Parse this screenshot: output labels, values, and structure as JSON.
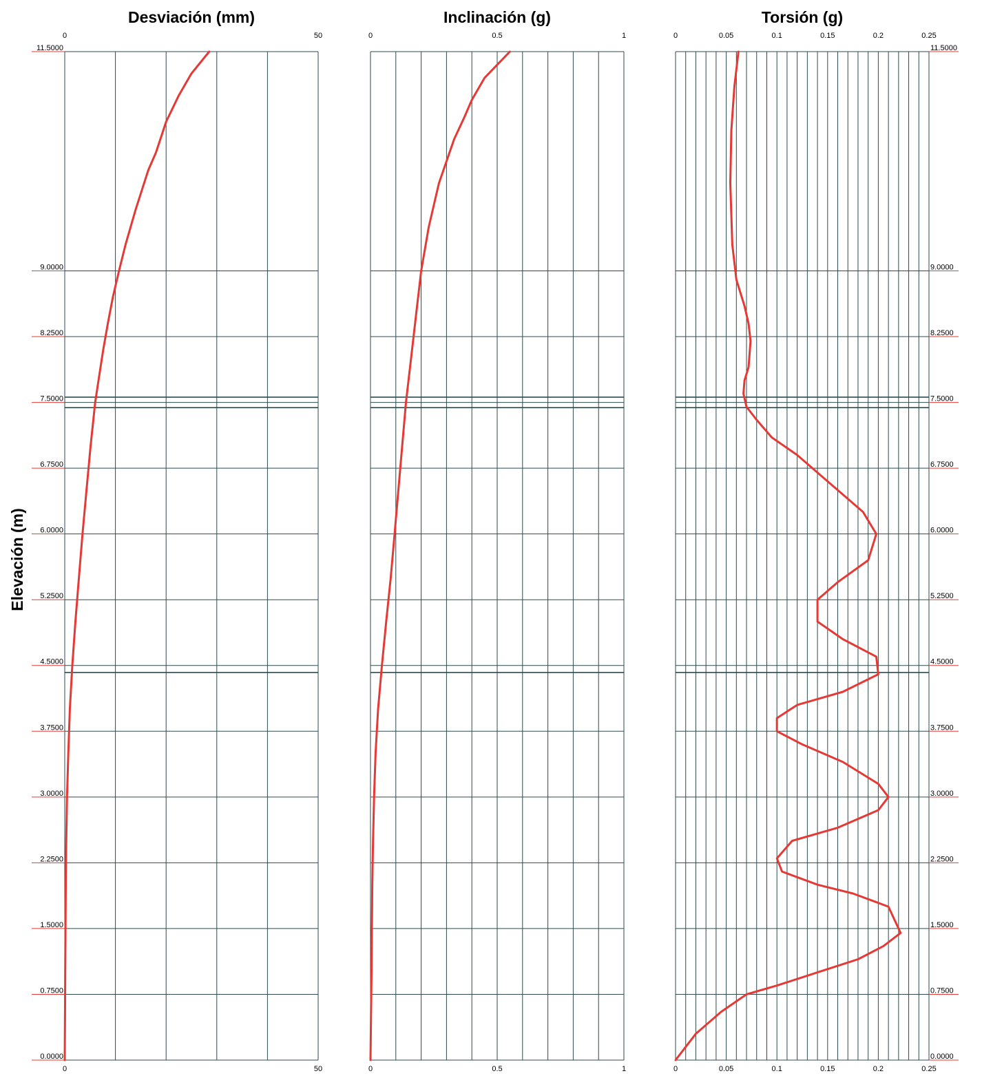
{
  "figure": {
    "ylabel": "Elevación (m)",
    "elevation_labels": [
      "0.0000",
      "0.7500",
      "1.5000",
      "2.2500",
      "3.0000",
      "3.7500",
      "4.5000",
      "5.2500",
      "6.0000",
      "6.7500",
      "7.5000",
      "8.2500",
      "9.0000",
      "11.5000"
    ],
    "elevation_values": [
      0,
      0.75,
      1.5,
      2.25,
      3.0,
      3.75,
      4.5,
      5.25,
      6.0,
      6.75,
      7.5,
      8.25,
      9.0,
      11.5
    ],
    "level_lines": [
      4.42,
      7.44,
      7.56
    ],
    "grid_color": "#2c4a4e",
    "line_color": "#e53935",
    "elev_underline_color": "#e53935"
  },
  "chart_data": [
    {
      "type": "line",
      "title": "Desviación (mm)",
      "xlabel": "",
      "ylabel": "Elevación (m)",
      "xlim": [
        0,
        50
      ],
      "ylim": [
        0,
        11.5
      ],
      "x_tick_labels": [
        "0",
        "50"
      ],
      "x_tick_values": [
        0,
        50
      ],
      "x_grid_values": [
        0,
        10,
        20,
        30,
        40,
        50
      ],
      "grid": true,
      "series": [
        {
          "x": [
            0,
            0.05,
            0.1,
            0.2,
            0.3,
            0.45,
            0.7,
            1.0,
            1.5,
            2.1,
            2.8,
            3.5,
            4.3,
            5.1,
            6.0,
            6.8,
            7.6,
            8.5,
            9.5,
            10.7,
            12.0,
            14.0,
            16.5,
            18.0,
            20.0,
            22.5,
            25.0,
            28.5
          ],
          "y": [
            0,
            0.5,
            1.0,
            2.0,
            2.5,
            3.0,
            3.5,
            4.0,
            4.5,
            5.0,
            5.5,
            6.0,
            6.5,
            7.0,
            7.5,
            7.8,
            8.1,
            8.4,
            8.7,
            9.0,
            9.3,
            9.7,
            10.15,
            10.35,
            10.7,
            11.0,
            11.25,
            11.5
          ]
        }
      ]
    },
    {
      "type": "line",
      "title": "Inclinación (g)",
      "xlabel": "",
      "ylabel": "",
      "xlim": [
        0,
        1
      ],
      "ylim": [
        0,
        11.5
      ],
      "x_tick_labels": [
        "0",
        "0.5",
        "1"
      ],
      "x_tick_values": [
        0,
        0.5,
        1
      ],
      "x_grid_values": [
        0,
        0.1,
        0.2,
        0.3,
        0.4,
        0.5,
        0.6,
        0.7,
        0.8,
        0.9,
        1.0
      ],
      "grid": true,
      "series": [
        {
          "x": [
            0,
            0.004,
            0.007,
            0.01,
            0.014,
            0.02,
            0.03,
            0.045,
            0.062,
            0.08,
            0.095,
            0.11,
            0.125,
            0.14,
            0.16,
            0.18,
            0.2,
            0.23,
            0.27,
            0.33,
            0.37,
            0.4,
            0.45,
            0.5,
            0.55
          ],
          "y": [
            0,
            1.0,
            2.0,
            2.5,
            3.0,
            3.5,
            4.0,
            4.5,
            5.0,
            5.5,
            6.0,
            6.5,
            7.0,
            7.5,
            8.0,
            8.5,
            9.0,
            9.5,
            10.0,
            10.5,
            10.75,
            10.95,
            11.2,
            11.35,
            11.5
          ]
        }
      ]
    },
    {
      "type": "line",
      "title": "Torsión (g)",
      "xlabel": "",
      "ylabel": "",
      "xlim": [
        0,
        0.25
      ],
      "ylim": [
        0,
        11.5
      ],
      "x_tick_labels": [
        "0",
        "0.05",
        "0.1",
        "0.15",
        "0.2",
        "0.25"
      ],
      "x_tick_values": [
        0,
        0.05,
        0.1,
        0.15,
        0.2,
        0.25
      ],
      "x_grid_values": [
        0,
        0.01,
        0.02,
        0.03,
        0.04,
        0.05,
        0.06,
        0.07,
        0.08,
        0.09,
        0.1,
        0.11,
        0.12,
        0.13,
        0.14,
        0.15,
        0.16,
        0.17,
        0.18,
        0.19,
        0.2,
        0.21,
        0.22,
        0.23,
        0.24,
        0.25
      ],
      "grid": true,
      "series": [
        {
          "x": [
            0,
            0.02,
            0.045,
            0.07,
            0.1,
            0.14,
            0.18,
            0.205,
            0.222,
            0.21,
            0.175,
            0.14,
            0.105,
            0.1,
            0.115,
            0.16,
            0.2,
            0.21,
            0.2,
            0.165,
            0.125,
            0.1,
            0.1,
            0.12,
            0.165,
            0.2,
            0.198,
            0.165,
            0.14,
            0.14,
            0.16,
            0.19,
            0.198,
            0.185,
            0.15,
            0.12,
            0.095,
            0.08,
            0.07,
            0.067,
            0.068,
            0.072,
            0.074,
            0.072,
            0.068,
            0.06,
            0.056,
            0.054,
            0.055,
            0.058,
            0.062
          ],
          "y": [
            0,
            0.3,
            0.55,
            0.75,
            0.85,
            1.0,
            1.15,
            1.3,
            1.45,
            1.75,
            1.9,
            2.0,
            2.15,
            2.3,
            2.5,
            2.65,
            2.85,
            3.0,
            3.15,
            3.4,
            3.6,
            3.75,
            3.9,
            4.05,
            4.2,
            4.4,
            4.6,
            4.8,
            5.0,
            5.25,
            5.45,
            5.7,
            6.0,
            6.25,
            6.6,
            6.9,
            7.1,
            7.3,
            7.45,
            7.6,
            7.75,
            7.9,
            8.2,
            8.4,
            8.6,
            8.9,
            9.3,
            10.0,
            10.6,
            11.1,
            11.5
          ]
        }
      ]
    }
  ]
}
